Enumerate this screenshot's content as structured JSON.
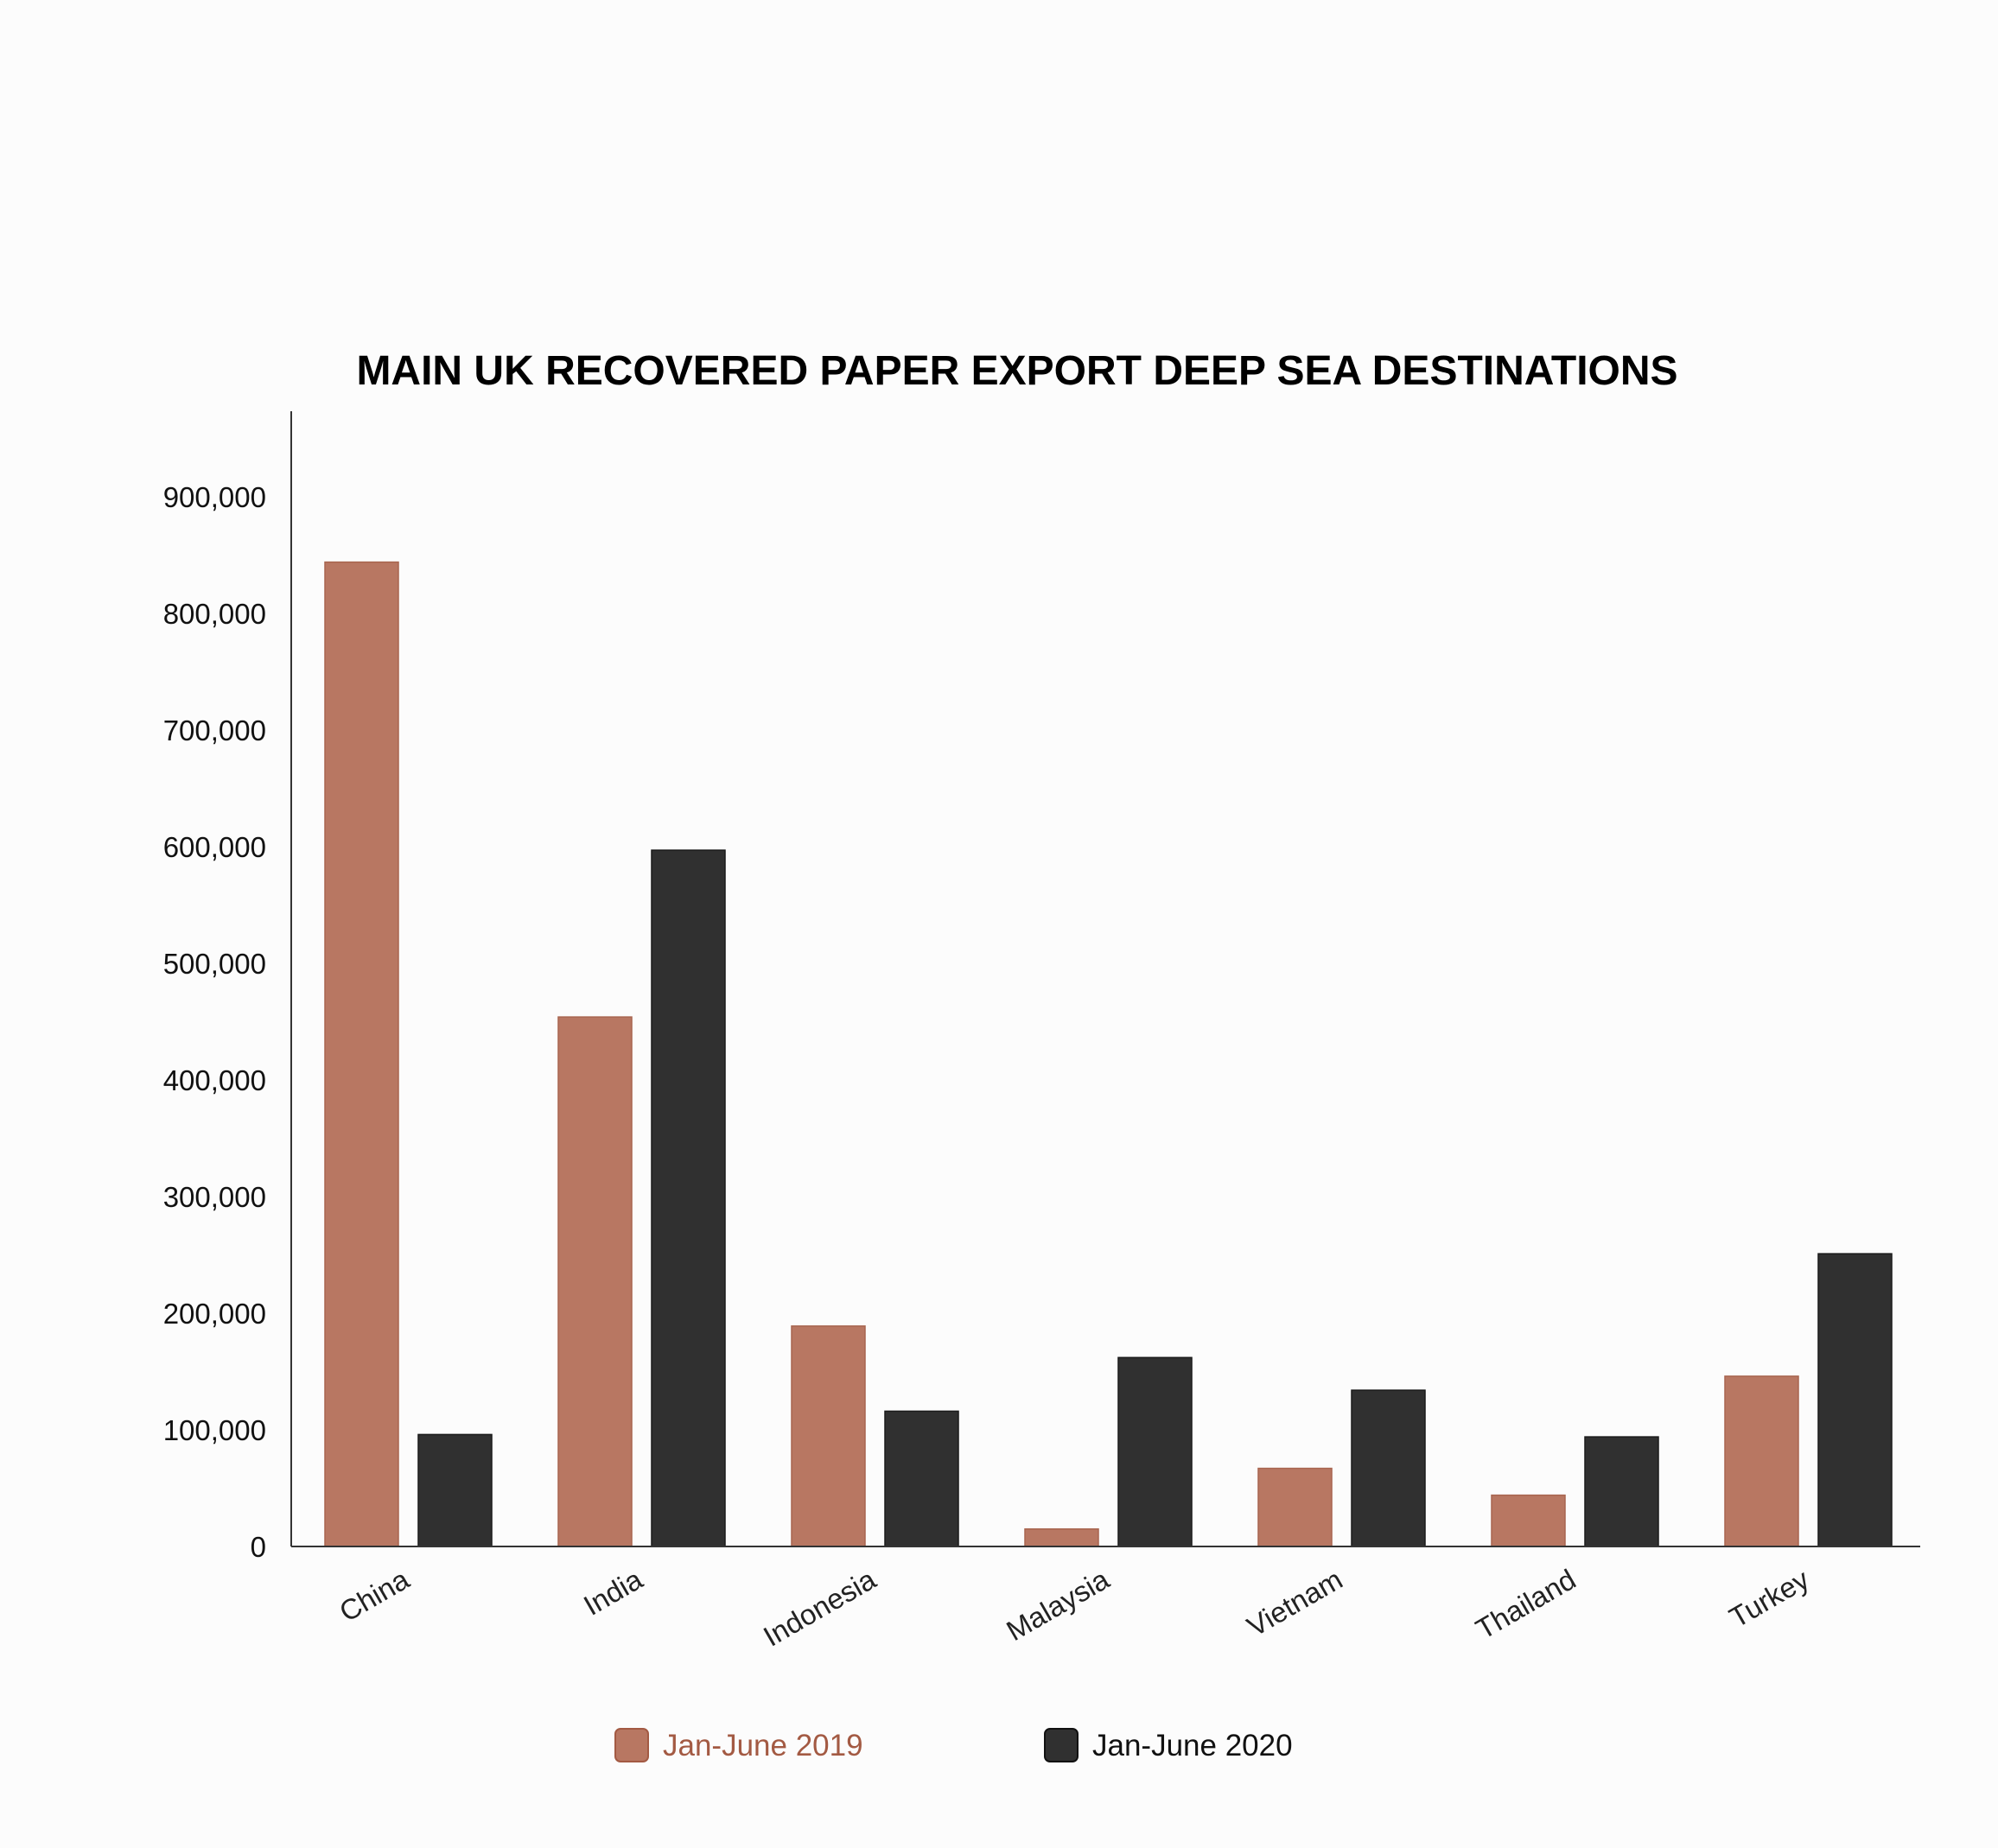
{
  "chart_data": {
    "type": "bar",
    "title": "MAIN UK RECOVERED PAPER EXPORT DEEP SEA DESTINATIONS",
    "xlabel": "",
    "ylabel": "",
    "ylim": [
      0,
      970000
    ],
    "yticks": [
      0,
      100000,
      200000,
      300000,
      400000,
      500000,
      600000,
      700000,
      800000,
      900000
    ],
    "ytick_labels": [
      "0",
      "100,000",
      "200,000",
      "300,000",
      "400,000",
      "500,000",
      "600,000",
      "700,000",
      "800,000",
      "900,000"
    ],
    "categories": [
      "China",
      "India",
      "Indonesia",
      "Malaysia",
      "Vietnam",
      "Thailand",
      "Turkey"
    ],
    "series": [
      {
        "name": "Jan-June 2019",
        "color": "#b87762",
        "text_color": "#a35a43",
        "values": [
          844000,
          454000,
          189000,
          15000,
          67000,
          44000,
          146000
        ]
      },
      {
        "name": "Jan-June 2020",
        "color": "#303030",
        "text_color": "#111111",
        "values": [
          96000,
          597000,
          116000,
          162000,
          134000,
          94000,
          251000
        ]
      }
    ],
    "grid": false,
    "legend_position": "bottom"
  }
}
